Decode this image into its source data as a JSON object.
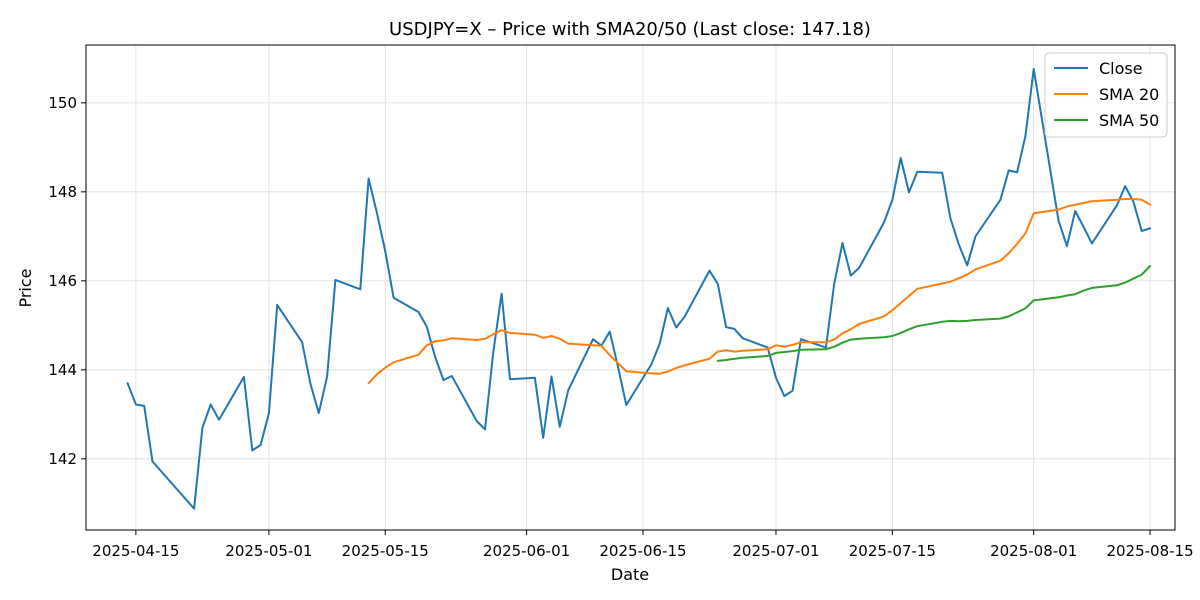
{
  "chart_data": {
    "type": "line",
    "title": "USDJPY=X – Price with SMA20/50 (Last close: 147.18)",
    "xlabel": "Date",
    "ylabel": "Price",
    "xlim": [
      "2025-04-09",
      "2025-08-18"
    ],
    "ylim": [
      140.4,
      151.3
    ],
    "grid": true,
    "legend_position": "top-right",
    "x_ticks": [
      "2025-04-15",
      "2025-05-01",
      "2025-05-15",
      "2025-06-01",
      "2025-06-15",
      "2025-07-01",
      "2025-07-15",
      "2025-08-01",
      "2025-08-15"
    ],
    "y_ticks": [
      142,
      144,
      146,
      148,
      150
    ],
    "series": [
      {
        "name": "Close",
        "color": "#1f77b4",
        "x": [
          "2025-04-14",
          "2025-04-15",
          "2025-04-16",
          "2025-04-17",
          "2025-04-22",
          "2025-04-23",
          "2025-04-24",
          "2025-04-25",
          "2025-04-28",
          "2025-04-29",
          "2025-04-30",
          "2025-05-01",
          "2025-05-02",
          "2025-05-05",
          "2025-05-06",
          "2025-05-07",
          "2025-05-08",
          "2025-05-09",
          "2025-05-12",
          "2025-05-13",
          "2025-05-14",
          "2025-05-15",
          "2025-05-16",
          "2025-05-19",
          "2025-05-20",
          "2025-05-21",
          "2025-05-22",
          "2025-05-23",
          "2025-05-26",
          "2025-05-27",
          "2025-05-28",
          "2025-05-29",
          "2025-05-30",
          "2025-06-02",
          "2025-06-03",
          "2025-06-04",
          "2025-06-05",
          "2025-06-06",
          "2025-06-09",
          "2025-06-10",
          "2025-06-11",
          "2025-06-12",
          "2025-06-13",
          "2025-06-16",
          "2025-06-17",
          "2025-06-18",
          "2025-06-19",
          "2025-06-20",
          "2025-06-23",
          "2025-06-24",
          "2025-06-25",
          "2025-06-26",
          "2025-06-27",
          "2025-06-30",
          "2025-07-01",
          "2025-07-02",
          "2025-07-03",
          "2025-07-04",
          "2025-07-07",
          "2025-07-08",
          "2025-07-09",
          "2025-07-10",
          "2025-07-11",
          "2025-07-14",
          "2025-07-15",
          "2025-07-16",
          "2025-07-17",
          "2025-07-18",
          "2025-07-21",
          "2025-07-22",
          "2025-07-23",
          "2025-07-24",
          "2025-07-25",
          "2025-07-28",
          "2025-07-29",
          "2025-07-30",
          "2025-07-31",
          "2025-08-01",
          "2025-08-04",
          "2025-08-05",
          "2025-08-06",
          "2025-08-07",
          "2025-08-08",
          "2025-08-11",
          "2025-08-12",
          "2025-08-13",
          "2025-08-14",
          "2025-08-15"
        ],
        "values": [
          143.7,
          143.22,
          143.19,
          141.94,
          140.88,
          142.7,
          143.22,
          142.88,
          143.84,
          142.19,
          142.31,
          143.02,
          145.46,
          144.62,
          143.68,
          143.03,
          143.85,
          146.02,
          145.81,
          148.3,
          147.52,
          146.66,
          145.62,
          145.3,
          144.97,
          144.29,
          143.77,
          143.86,
          142.85,
          142.66,
          144.4,
          145.71,
          143.79,
          143.82,
          142.47,
          143.85,
          142.72,
          143.54,
          144.69,
          144.54,
          144.86,
          144.07,
          143.21,
          144.12,
          144.58,
          145.39,
          144.95,
          145.19,
          146.23,
          145.93,
          144.96,
          144.92,
          144.71,
          144.5,
          143.82,
          143.41,
          143.53,
          144.69,
          144.5,
          145.93,
          146.85,
          146.12,
          146.29,
          147.31,
          147.82,
          148.76,
          147.99,
          148.45,
          148.43,
          147.4,
          146.81,
          146.35,
          147.0,
          147.82,
          148.48,
          148.44,
          149.25,
          150.76,
          147.35,
          146.78,
          147.57,
          147.21,
          146.84,
          147.69,
          148.13,
          147.78,
          147.12,
          147.18
        ]
      },
      {
        "name": "SMA 20",
        "color": "#ff7f0e",
        "x": [
          "2025-05-13",
          "2025-05-14",
          "2025-05-15",
          "2025-05-16",
          "2025-05-19",
          "2025-05-20",
          "2025-05-21",
          "2025-05-22",
          "2025-05-23",
          "2025-05-26",
          "2025-05-27",
          "2025-05-28",
          "2025-05-29",
          "2025-05-30",
          "2025-06-02",
          "2025-06-03",
          "2025-06-04",
          "2025-06-05",
          "2025-06-06",
          "2025-06-09",
          "2025-06-10",
          "2025-06-11",
          "2025-06-12",
          "2025-06-13",
          "2025-06-16",
          "2025-06-17",
          "2025-06-18",
          "2025-06-19",
          "2025-06-20",
          "2025-06-23",
          "2025-06-24",
          "2025-06-25",
          "2025-06-26",
          "2025-06-27",
          "2025-06-30",
          "2025-07-01",
          "2025-07-02",
          "2025-07-03",
          "2025-07-04",
          "2025-07-07",
          "2025-07-08",
          "2025-07-09",
          "2025-07-10",
          "2025-07-11",
          "2025-07-14",
          "2025-07-15",
          "2025-07-16",
          "2025-07-17",
          "2025-07-18",
          "2025-07-21",
          "2025-07-22",
          "2025-07-23",
          "2025-07-24",
          "2025-07-25",
          "2025-07-28",
          "2025-07-29",
          "2025-07-30",
          "2025-07-31",
          "2025-08-01",
          "2025-08-04",
          "2025-08-05",
          "2025-08-06",
          "2025-08-07",
          "2025-08-08",
          "2025-08-11",
          "2025-08-12",
          "2025-08-13",
          "2025-08-14",
          "2025-08-15"
        ],
        "values": [
          143.7,
          143.9,
          144.05,
          144.17,
          144.34,
          144.55,
          144.64,
          144.66,
          144.71,
          144.67,
          144.7,
          144.8,
          144.89,
          144.83,
          144.79,
          144.72,
          144.76,
          144.7,
          144.59,
          144.55,
          144.54,
          144.33,
          144.15,
          143.97,
          143.92,
          143.91,
          143.96,
          144.04,
          144.1,
          144.25,
          144.41,
          144.44,
          144.41,
          144.43,
          144.46,
          144.55,
          144.52,
          144.56,
          144.62,
          144.62,
          144.68,
          144.82,
          144.91,
          145.03,
          145.2,
          145.34,
          145.5,
          145.66,
          145.82,
          145.94,
          145.98,
          146.06,
          146.14,
          146.26,
          146.45,
          146.62,
          146.83,
          147.07,
          147.52,
          147.6,
          147.67,
          147.71,
          147.75,
          147.79,
          147.82,
          147.84,
          147.84,
          147.82,
          147.71
        ]
      },
      {
        "name": "SMA 50",
        "color": "#2ca02c",
        "x": [
          "2025-06-24",
          "2025-06-25",
          "2025-06-26",
          "2025-06-27",
          "2025-06-30",
          "2025-07-01",
          "2025-07-02",
          "2025-07-03",
          "2025-07-04",
          "2025-07-07",
          "2025-07-08",
          "2025-07-09",
          "2025-07-10",
          "2025-07-11",
          "2025-07-14",
          "2025-07-15",
          "2025-07-16",
          "2025-07-17",
          "2025-07-18",
          "2025-07-21",
          "2025-07-22",
          "2025-07-23",
          "2025-07-24",
          "2025-07-25",
          "2025-07-28",
          "2025-07-29",
          "2025-07-30",
          "2025-07-31",
          "2025-08-01",
          "2025-08-04",
          "2025-08-05",
          "2025-08-06",
          "2025-08-07",
          "2025-08-08",
          "2025-08-11",
          "2025-08-12",
          "2025-08-13",
          "2025-08-14",
          "2025-08-15"
        ],
        "values": [
          144.2,
          144.22,
          144.25,
          144.27,
          144.31,
          144.38,
          144.4,
          144.42,
          144.45,
          144.46,
          144.52,
          144.61,
          144.68,
          144.7,
          144.73,
          144.76,
          144.83,
          144.91,
          144.98,
          145.08,
          145.1,
          145.09,
          145.1,
          145.12,
          145.15,
          145.2,
          145.29,
          145.38,
          145.56,
          145.63,
          145.67,
          145.7,
          145.78,
          145.84,
          145.9,
          145.96,
          146.05,
          146.14,
          146.33
        ]
      }
    ]
  }
}
